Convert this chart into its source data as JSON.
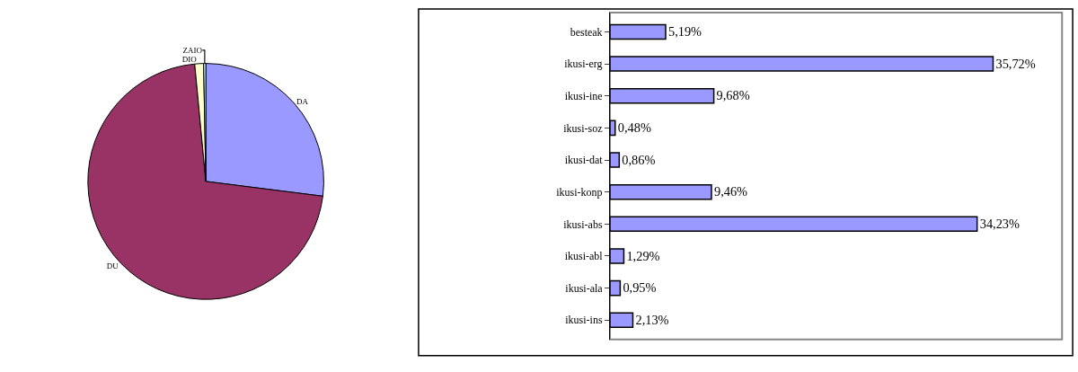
{
  "chart_data": [
    {
      "type": "pie",
      "categories": [
        "DA",
        "DU",
        "DIO",
        "ZAIO"
      ],
      "values": [
        27,
        71.5,
        1.2,
        0.3
      ],
      "colors": [
        "#9999ff",
        "#993366",
        "#ffffcc",
        "#ccffff"
      ]
    },
    {
      "type": "bar",
      "orientation": "horizontal",
      "categories": [
        "besteak",
        "ikusi-erg",
        "ikusi-ine",
        "ikusi-soz",
        "ikusi-dat",
        "ikusi-konp",
        "ikusi-abs",
        "ikusi-abl",
        "ikusi-ala",
        "ikusi-ins"
      ],
      "values": [
        5.19,
        35.72,
        9.68,
        0.48,
        0.86,
        9.46,
        34.23,
        1.29,
        0.95,
        2.13
      ],
      "value_labels": [
        "5,19%",
        "35,72%",
        "9,68%",
        "0,48%",
        "0,86%",
        "9,46%",
        "34,23%",
        "1,29%",
        "0,95%",
        "2,13%"
      ],
      "color": "#9999ff",
      "tick_labels": "y"
    }
  ]
}
